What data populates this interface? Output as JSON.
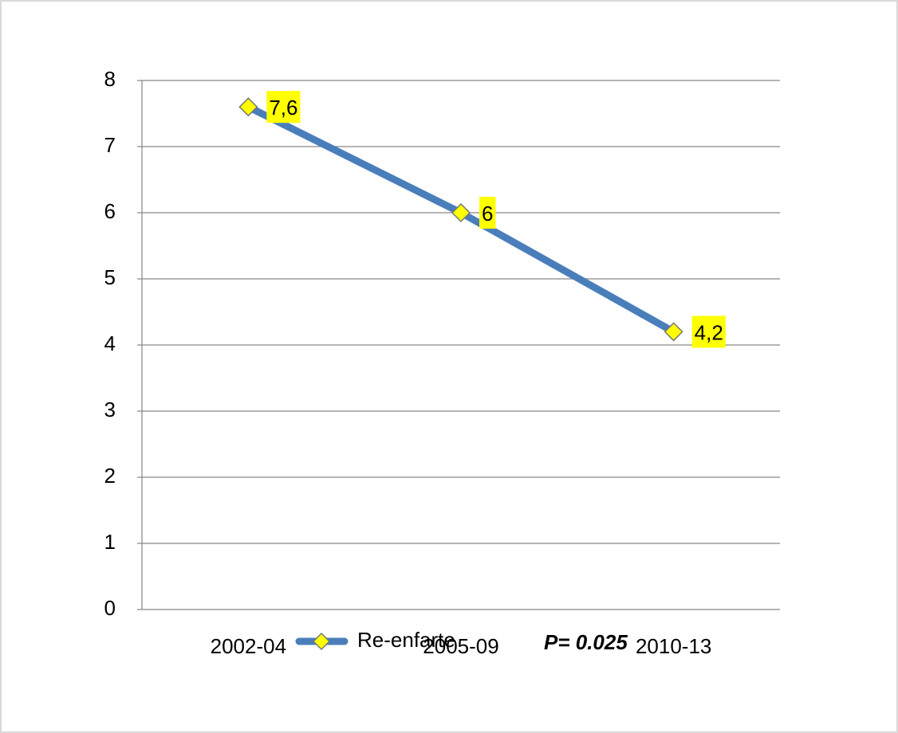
{
  "chart_data": {
    "type": "line",
    "categories": [
      "2002-04",
      "2005-09",
      "2010-13"
    ],
    "series": [
      {
        "name": "Re-enfarte",
        "color": "#4a7ebb",
        "marker_color": "#ffff00",
        "values": [
          7.6,
          6,
          4.2
        ],
        "value_labels": [
          "7,6",
          "6",
          "4,2"
        ]
      }
    ],
    "ylim": [
      0,
      8
    ],
    "yticks": [
      0,
      1,
      2,
      3,
      4,
      5,
      6,
      7,
      8
    ],
    "grid": true,
    "legend": "bottom",
    "annotation": "P= 0.025"
  }
}
